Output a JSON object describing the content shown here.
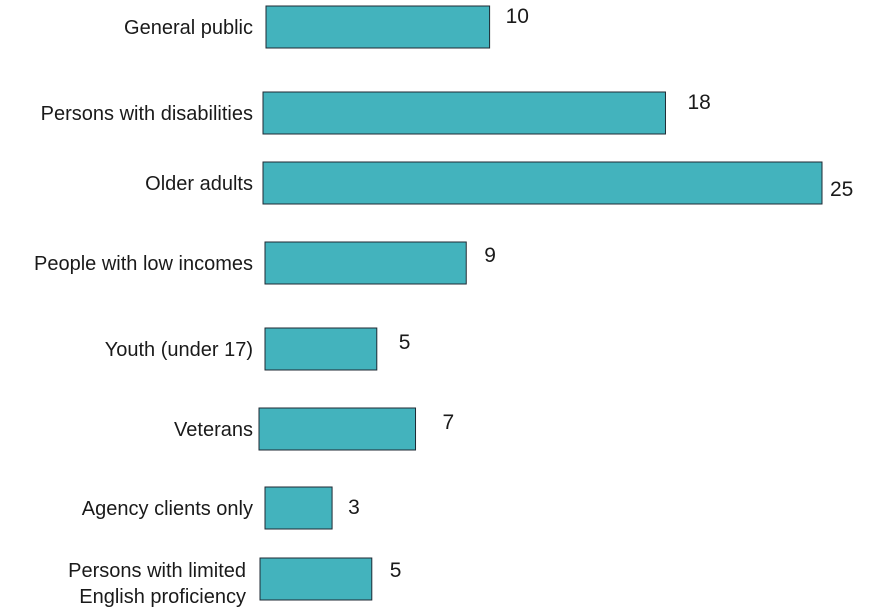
{
  "chart_data": {
    "type": "bar",
    "orientation": "horizontal",
    "categories": [
      "General public",
      "Persons with disabilities",
      "Older adults",
      "People with low incomes",
      "Youth (under 17)",
      "Veterans",
      "Agency clients only",
      "Persons with limited English proficiency"
    ],
    "category_lines": [
      [
        "General public"
      ],
      [
        "Persons with disabilities"
      ],
      [
        "Older adults"
      ],
      [
        "People with low incomes"
      ],
      [
        "Youth (under 17)"
      ],
      [
        "Veterans"
      ],
      [
        "Agency clients only"
      ],
      [
        "Persons with limited",
        "English proficiency"
      ]
    ],
    "values": [
      10,
      18,
      25,
      9,
      5,
      7,
      3,
      5
    ],
    "value_labels": [
      "10",
      "18",
      "25",
      "9",
      "5",
      "7",
      "3",
      "5"
    ],
    "xlim": [
      0,
      25
    ],
    "grid": false,
    "legend": "none",
    "bar_color": "#43b3bd",
    "edge_color": "#1f2a33"
  }
}
